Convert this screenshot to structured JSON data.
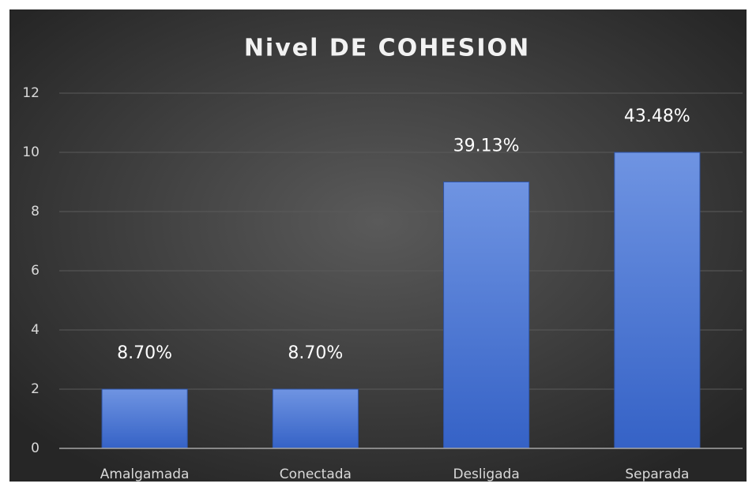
{
  "chart_data": {
    "type": "bar",
    "title": "Nivel DE COHESION",
    "categories": [
      "Amalgamada",
      "Conectada",
      "Desligada",
      "Separada"
    ],
    "values": [
      2,
      2,
      9,
      10
    ],
    "annotations": [
      "8.70%",
      "8.70%",
      "39.13%",
      "43.48%"
    ],
    "color": "#4472c4",
    "ylim": [
      0,
      12
    ],
    "yticks": [
      0,
      2,
      4,
      6,
      8,
      10,
      12
    ],
    "grid": true
  }
}
